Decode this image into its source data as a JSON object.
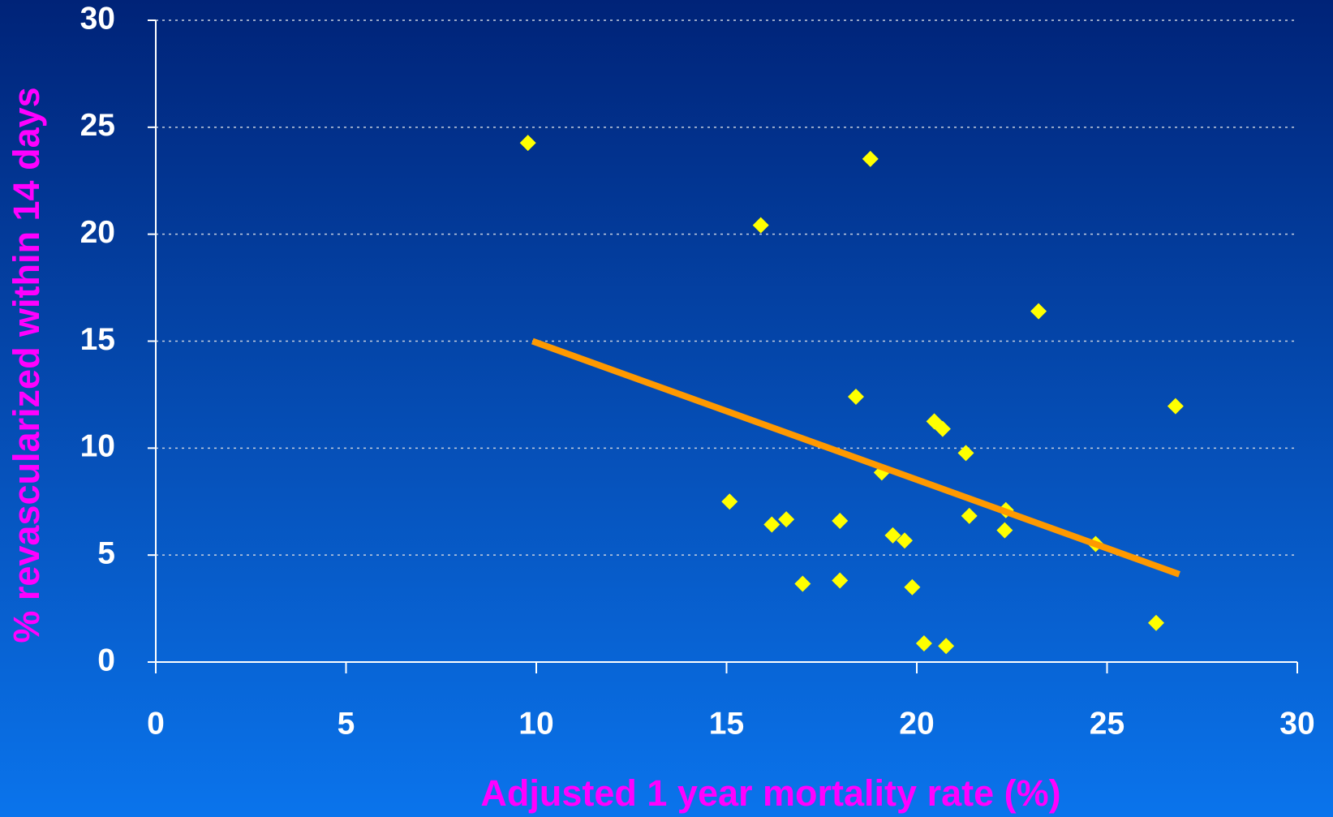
{
  "chart_data": {
    "type": "scatter",
    "xlabel": "Adjusted 1 year mortality rate (%)",
    "ylabel": "% revascularized within 14 days",
    "xlim": [
      0,
      30
    ],
    "xticks": [
      0,
      5,
      10,
      15,
      20,
      25,
      30
    ],
    "ylim": [
      0,
      30
    ],
    "yticks": [
      0,
      5,
      10,
      15,
      20,
      25,
      30
    ],
    "grid": true,
    "series": [
      {
        "color": "#ffff00",
        "marker": "diamond",
        "x": [
          9.78,
          18.78,
          15.9,
          23.2,
          18.4,
          26.8,
          20.46,
          20.68,
          21.29,
          19.08,
          15.08,
          22.34,
          21.38,
          16.57,
          16.19,
          17.98,
          22.31,
          19.37,
          19.68,
          24.7,
          17.0,
          17.98,
          19.88,
          20.19,
          20.77,
          26.29
        ],
        "y": [
          24.27,
          23.52,
          20.42,
          16.4,
          12.4,
          11.96,
          11.25,
          10.9,
          9.77,
          8.86,
          7.5,
          7.1,
          6.83,
          6.67,
          6.43,
          6.6,
          6.16,
          5.92,
          5.68,
          5.52,
          3.66,
          3.81,
          3.5,
          0.87,
          0.75,
          1.83
        ]
      }
    ],
    "trendline": {
      "color": "#ff9900",
      "x": [
        9.9,
        26.9
      ],
      "y": [
        15.0,
        4.1
      ]
    }
  }
}
